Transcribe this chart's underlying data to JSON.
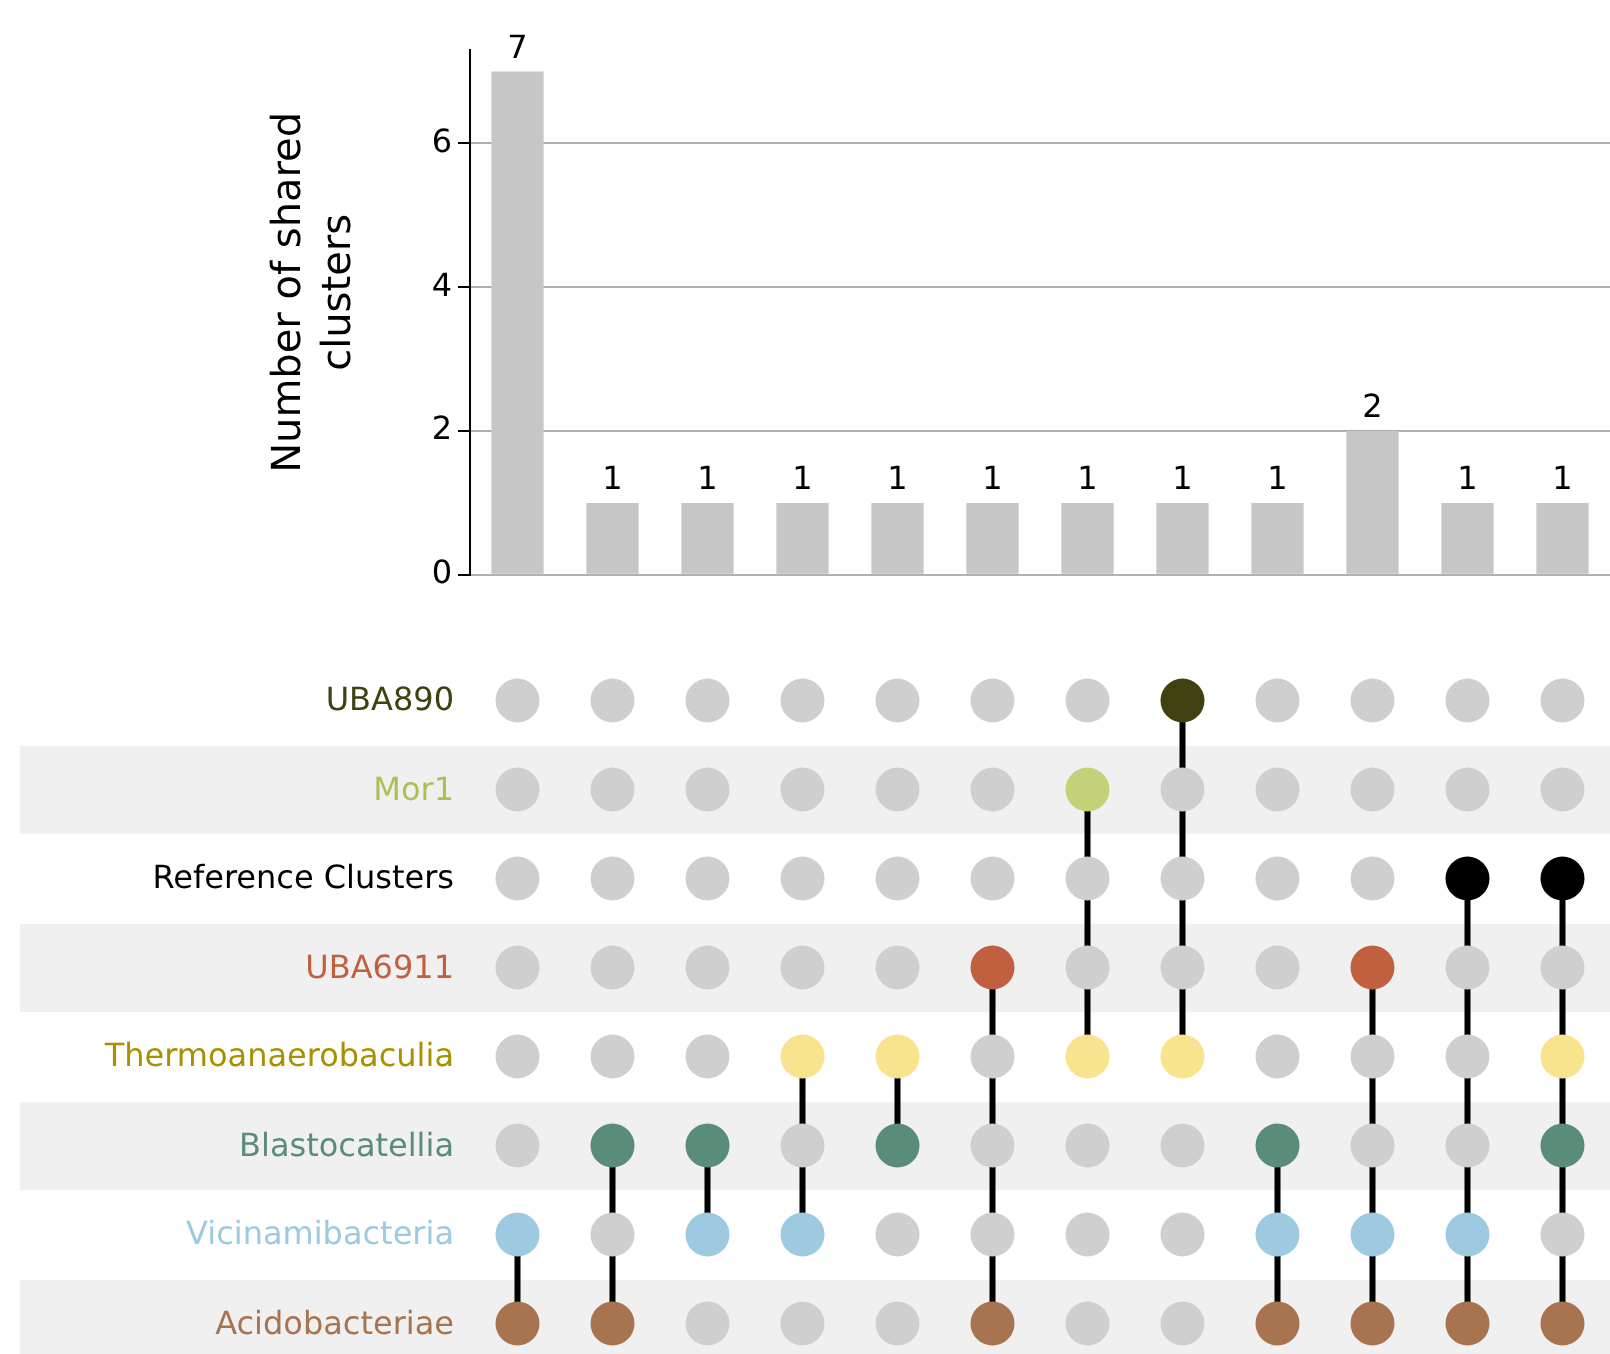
{
  "chart_data": {
    "type": "bar",
    "ylabel": "Number of shared clusters",
    "categories": [
      null,
      null,
      null,
      null,
      null,
      null,
      null,
      null,
      null,
      null,
      null,
      null
    ],
    "values": [
      7,
      1,
      1,
      1,
      1,
      1,
      1,
      1,
      1,
      2,
      1,
      1
    ],
    "color": "#c6c6c6",
    "ylim": [
      0,
      7.3
    ],
    "yticks": [
      0,
      2,
      4,
      6
    ],
    "grid": "y",
    "data_labels": true,
    "annotations": [
      "UBA890",
      "Mor1",
      "Reference Clusters",
      "UBA6911",
      "Thermoanaerobaculia",
      "Blastocatellia",
      "Vicinamibacteria",
      "Acidobacteriae"
    ]
  }
}
